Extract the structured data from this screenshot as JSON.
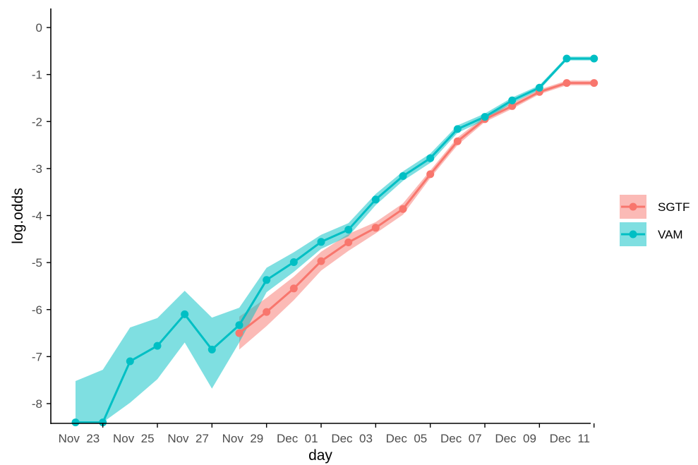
{
  "chart_data": {
    "type": "line",
    "xlabel": "day",
    "ylabel": "log.odds",
    "x": [
      "Nov 22",
      "Nov 23",
      "Nov 24",
      "Nov 25",
      "Nov 26",
      "Nov 27",
      "Nov 28",
      "Nov 29",
      "Nov 30",
      "Dec 01",
      "Dec 02",
      "Dec 03",
      "Dec 04",
      "Dec 05",
      "Dec 06",
      "Dec 07",
      "Dec 08",
      "Dec 09",
      "Dec 10",
      "Dec 11"
    ],
    "x_tick_labels": [
      "Nov  23",
      "Nov  25",
      "Nov  27",
      "Nov  29",
      "Dec  01",
      "Dec  03",
      "Dec  05",
      "Dec  07",
      "Dec  09",
      "Dec  11"
    ],
    "x_tick_positions": [
      "Nov 23",
      "Nov 25",
      "Nov 27",
      "Nov 29",
      "Dec 01",
      "Dec 03",
      "Dec 05",
      "Dec 07",
      "Dec 09",
      "Dec 11"
    ],
    "y_ticks": [
      0,
      -1,
      -2,
      -3,
      -4,
      -5,
      -6,
      -7,
      -8
    ],
    "ylim": [
      -8.4,
      0.35
    ],
    "grid": false,
    "legend_position": "right",
    "series": [
      {
        "name": "SGTF",
        "color": "#F8766D",
        "x": [
          "Nov 28",
          "Nov 29",
          "Nov 30",
          "Dec 01",
          "Dec 02",
          "Dec 03",
          "Dec 04",
          "Dec 05",
          "Dec 06",
          "Dec 07",
          "Dec 08",
          "Dec 09",
          "Dec 10",
          "Dec 11"
        ],
        "values": [
          -6.5,
          -6.05,
          -5.55,
          -4.97,
          -4.57,
          -4.26,
          -3.86,
          -3.12,
          -2.42,
          -1.95,
          -1.67,
          -1.37,
          -1.18,
          -1.18
        ],
        "lower": [
          -6.85,
          -6.35,
          -5.8,
          -5.17,
          -4.75,
          -4.38,
          -3.98,
          -3.2,
          -2.5,
          -2.01,
          -1.73,
          -1.42,
          -1.23,
          -1.23
        ],
        "upper": [
          -6.15,
          -5.75,
          -5.3,
          -4.77,
          -4.39,
          -4.14,
          -3.74,
          -3.04,
          -2.34,
          -1.89,
          -1.61,
          -1.32,
          -1.13,
          -1.13
        ]
      },
      {
        "name": "VAM",
        "color": "#00BFC4",
        "x": [
          "Nov 22",
          "Nov 23",
          "Nov 24",
          "Nov 25",
          "Nov 26",
          "Nov 27",
          "Nov 28",
          "Nov 29",
          "Nov 30",
          "Dec 01",
          "Dec 02",
          "Dec 03",
          "Dec 04",
          "Dec 05",
          "Dec 06",
          "Dec 07",
          "Dec 08",
          "Dec 09",
          "Dec 10",
          "Dec 11"
        ],
        "values": [
          -8.4,
          -8.4,
          -7.1,
          -6.77,
          -6.1,
          -6.85,
          -6.33,
          -5.37,
          -4.99,
          -4.56,
          -4.3,
          -3.66,
          -3.16,
          -2.78,
          -2.16,
          -1.9,
          -1.55,
          -1.28,
          -0.66,
          -0.66
        ],
        "lower": [
          -8.4,
          -8.4,
          -7.98,
          -7.48,
          -6.7,
          -7.68,
          -6.7,
          -5.63,
          -5.2,
          -4.71,
          -4.44,
          -3.78,
          -3.26,
          -2.88,
          -2.24,
          -1.97,
          -1.61,
          -1.33,
          -0.7,
          -0.7
        ],
        "upper": [
          -7.52,
          -7.28,
          -6.38,
          -6.18,
          -5.6,
          -6.17,
          -5.96,
          -5.11,
          -4.78,
          -4.41,
          -4.16,
          -3.54,
          -3.06,
          -2.68,
          -2.08,
          -1.83,
          -1.49,
          -1.23,
          -0.62,
          -0.62
        ]
      }
    ]
  }
}
